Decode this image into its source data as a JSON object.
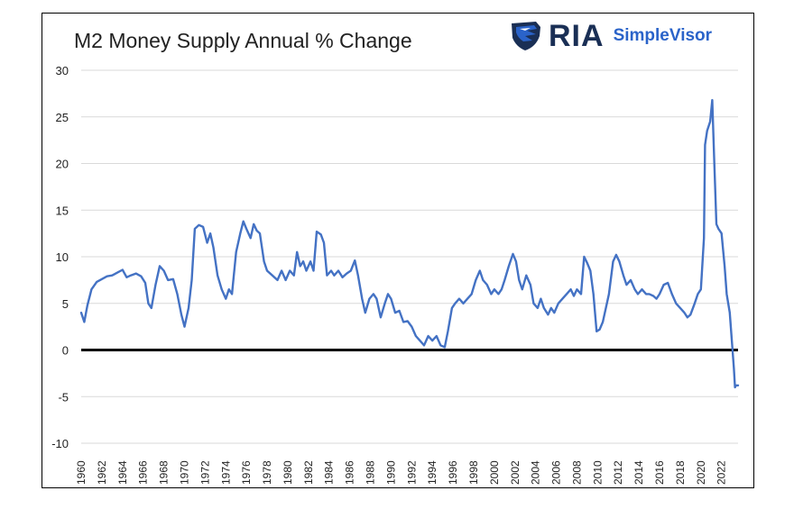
{
  "title": "M2 Money Supply Annual % Change",
  "logo": {
    "brand": "RIA",
    "product": "SimpleVisor",
    "icon": "eagle-shield-icon",
    "brand_color": "#1a2f55",
    "product_color": "#2a63c9"
  },
  "colors": {
    "series": "#4472c4",
    "zero_line": "#000000",
    "grid": "#d9d9d9"
  },
  "chart_data": {
    "type": "line",
    "title": "M2 Money Supply Annual % Change",
    "xlabel": "",
    "ylabel": "",
    "ylim": [
      -10,
      30
    ],
    "yticks": [
      -10,
      -5,
      0,
      5,
      10,
      15,
      20,
      25,
      30
    ],
    "xlim": [
      1960,
      2023.6
    ],
    "xticks": [
      "1960",
      "1962",
      "1964",
      "1966",
      "1968",
      "1970",
      "1972",
      "1974",
      "1976",
      "1978",
      "1980",
      "1982",
      "1984",
      "1986",
      "1988",
      "1990",
      "1992",
      "1994",
      "1996",
      "1998",
      "2000",
      "2002",
      "2004",
      "2006",
      "2008",
      "2010",
      "2012",
      "2014",
      "2016",
      "2018",
      "2020",
      "2022"
    ],
    "grid": true,
    "series": [
      {
        "values": [
          [
            1960.0,
            4.0
          ],
          [
            1960.3,
            3.0
          ],
          [
            1960.6,
            4.8
          ],
          [
            1961.0,
            6.5
          ],
          [
            1961.5,
            7.3
          ],
          [
            1962.0,
            7.6
          ],
          [
            1962.5,
            7.9
          ],
          [
            1963.0,
            8.0
          ],
          [
            1963.5,
            8.3
          ],
          [
            1964.0,
            8.6
          ],
          [
            1964.4,
            7.8
          ],
          [
            1964.8,
            8.0
          ],
          [
            1965.3,
            8.2
          ],
          [
            1965.8,
            7.9
          ],
          [
            1966.2,
            7.2
          ],
          [
            1966.5,
            5.0
          ],
          [
            1966.8,
            4.5
          ],
          [
            1967.2,
            7.0
          ],
          [
            1967.6,
            9.0
          ],
          [
            1968.0,
            8.5
          ],
          [
            1968.4,
            7.5
          ],
          [
            1968.9,
            7.6
          ],
          [
            1969.3,
            6.0
          ],
          [
            1969.7,
            3.8
          ],
          [
            1970.0,
            2.5
          ],
          [
            1970.4,
            4.5
          ],
          [
            1970.7,
            7.5
          ],
          [
            1971.0,
            13.0
          ],
          [
            1971.4,
            13.4
          ],
          [
            1971.8,
            13.2
          ],
          [
            1972.2,
            11.5
          ],
          [
            1972.5,
            12.5
          ],
          [
            1972.8,
            11.0
          ],
          [
            1973.2,
            8.0
          ],
          [
            1973.6,
            6.5
          ],
          [
            1974.0,
            5.5
          ],
          [
            1974.3,
            6.5
          ],
          [
            1974.6,
            6.0
          ],
          [
            1975.0,
            10.5
          ],
          [
            1975.4,
            12.5
          ],
          [
            1975.7,
            13.8
          ],
          [
            1976.0,
            13.0
          ],
          [
            1976.4,
            12.0
          ],
          [
            1976.7,
            13.5
          ],
          [
            1977.0,
            12.8
          ],
          [
            1977.3,
            12.5
          ],
          [
            1977.7,
            9.5
          ],
          [
            1978.0,
            8.5
          ],
          [
            1978.5,
            8.0
          ],
          [
            1979.0,
            7.5
          ],
          [
            1979.4,
            8.5
          ],
          [
            1979.8,
            7.5
          ],
          [
            1980.2,
            8.5
          ],
          [
            1980.6,
            8.0
          ],
          [
            1980.9,
            10.5
          ],
          [
            1981.2,
            9.0
          ],
          [
            1981.5,
            9.5
          ],
          [
            1981.8,
            8.5
          ],
          [
            1982.2,
            9.5
          ],
          [
            1982.5,
            8.5
          ],
          [
            1982.8,
            12.7
          ],
          [
            1983.2,
            12.4
          ],
          [
            1983.5,
            11.5
          ],
          [
            1983.8,
            8.0
          ],
          [
            1984.2,
            8.5
          ],
          [
            1984.5,
            8.0
          ],
          [
            1984.9,
            8.5
          ],
          [
            1985.3,
            7.8
          ],
          [
            1985.7,
            8.2
          ],
          [
            1986.1,
            8.5
          ],
          [
            1986.5,
            9.6
          ],
          [
            1986.8,
            8.0
          ],
          [
            1987.2,
            5.5
          ],
          [
            1987.5,
            4.0
          ],
          [
            1987.9,
            5.5
          ],
          [
            1988.3,
            6.0
          ],
          [
            1988.6,
            5.5
          ],
          [
            1989.0,
            3.5
          ],
          [
            1989.4,
            5.0
          ],
          [
            1989.7,
            6.0
          ],
          [
            1990.0,
            5.5
          ],
          [
            1990.4,
            4.0
          ],
          [
            1990.8,
            4.2
          ],
          [
            1991.2,
            3.0
          ],
          [
            1991.6,
            3.1
          ],
          [
            1992.0,
            2.5
          ],
          [
            1992.4,
            1.5
          ],
          [
            1992.8,
            1.0
          ],
          [
            1993.2,
            0.5
          ],
          [
            1993.6,
            1.5
          ],
          [
            1994.0,
            1.0
          ],
          [
            1994.4,
            1.5
          ],
          [
            1994.8,
            0.5
          ],
          [
            1995.2,
            0.3
          ],
          [
            1995.5,
            2.0
          ],
          [
            1995.9,
            4.5
          ],
          [
            1996.2,
            5.0
          ],
          [
            1996.6,
            5.5
          ],
          [
            1997.0,
            5.0
          ],
          [
            1997.4,
            5.5
          ],
          [
            1997.8,
            6.0
          ],
          [
            1998.2,
            7.5
          ],
          [
            1998.6,
            8.5
          ],
          [
            1998.9,
            7.5
          ],
          [
            1999.3,
            7.0
          ],
          [
            1999.7,
            6.0
          ],
          [
            2000.0,
            6.5
          ],
          [
            2000.4,
            6.0
          ],
          [
            2000.7,
            6.5
          ],
          [
            2001.0,
            7.5
          ],
          [
            2001.4,
            9.0
          ],
          [
            2001.8,
            10.3
          ],
          [
            2002.1,
            9.5
          ],
          [
            2002.4,
            7.5
          ],
          [
            2002.7,
            6.5
          ],
          [
            2003.1,
            8.0
          ],
          [
            2003.5,
            7.0
          ],
          [
            2003.8,
            5.0
          ],
          [
            2004.2,
            4.5
          ],
          [
            2004.5,
            5.5
          ],
          [
            2004.8,
            4.5
          ],
          [
            2005.2,
            3.8
          ],
          [
            2005.5,
            4.5
          ],
          [
            2005.8,
            4.0
          ],
          [
            2006.2,
            5.0
          ],
          [
            2006.6,
            5.5
          ],
          [
            2007.0,
            6.0
          ],
          [
            2007.4,
            6.5
          ],
          [
            2007.7,
            5.8
          ],
          [
            2008.0,
            6.5
          ],
          [
            2008.4,
            6.0
          ],
          [
            2008.7,
            10.0
          ],
          [
            2009.0,
            9.3
          ],
          [
            2009.3,
            8.5
          ],
          [
            2009.6,
            6.0
          ],
          [
            2009.9,
            2.0
          ],
          [
            2010.2,
            2.2
          ],
          [
            2010.5,
            3.0
          ],
          [
            2010.8,
            4.5
          ],
          [
            2011.1,
            6.0
          ],
          [
            2011.5,
            9.5
          ],
          [
            2011.8,
            10.2
          ],
          [
            2012.1,
            9.5
          ],
          [
            2012.5,
            8.0
          ],
          [
            2012.8,
            7.0
          ],
          [
            2013.2,
            7.5
          ],
          [
            2013.6,
            6.5
          ],
          [
            2013.9,
            6.0
          ],
          [
            2014.3,
            6.5
          ],
          [
            2014.7,
            6.0
          ],
          [
            2015.0,
            6.0
          ],
          [
            2015.4,
            5.8
          ],
          [
            2015.7,
            5.5
          ],
          [
            2016.0,
            6.0
          ],
          [
            2016.4,
            7.0
          ],
          [
            2016.8,
            7.2
          ],
          [
            2017.2,
            6.0
          ],
          [
            2017.6,
            5.0
          ],
          [
            2018.0,
            4.5
          ],
          [
            2018.4,
            4.0
          ],
          [
            2018.7,
            3.5
          ],
          [
            2019.0,
            3.8
          ],
          [
            2019.4,
            5.0
          ],
          [
            2019.7,
            6.0
          ],
          [
            2020.0,
            6.5
          ],
          [
            2020.3,
            12.0
          ],
          [
            2020.4,
            22.0
          ],
          [
            2020.6,
            23.5
          ],
          [
            2020.9,
            24.5
          ],
          [
            2021.1,
            26.8
          ],
          [
            2021.3,
            20.0
          ],
          [
            2021.5,
            13.5
          ],
          [
            2021.7,
            13.0
          ],
          [
            2022.0,
            12.5
          ],
          [
            2022.3,
            9.0
          ],
          [
            2022.5,
            6.0
          ],
          [
            2022.8,
            4.0
          ],
          [
            2023.0,
            1.0
          ],
          [
            2023.2,
            -2.0
          ],
          [
            2023.3,
            -4.0
          ],
          [
            2023.4,
            -3.8
          ],
          [
            2023.6,
            -3.8
          ]
        ]
      }
    ]
  }
}
